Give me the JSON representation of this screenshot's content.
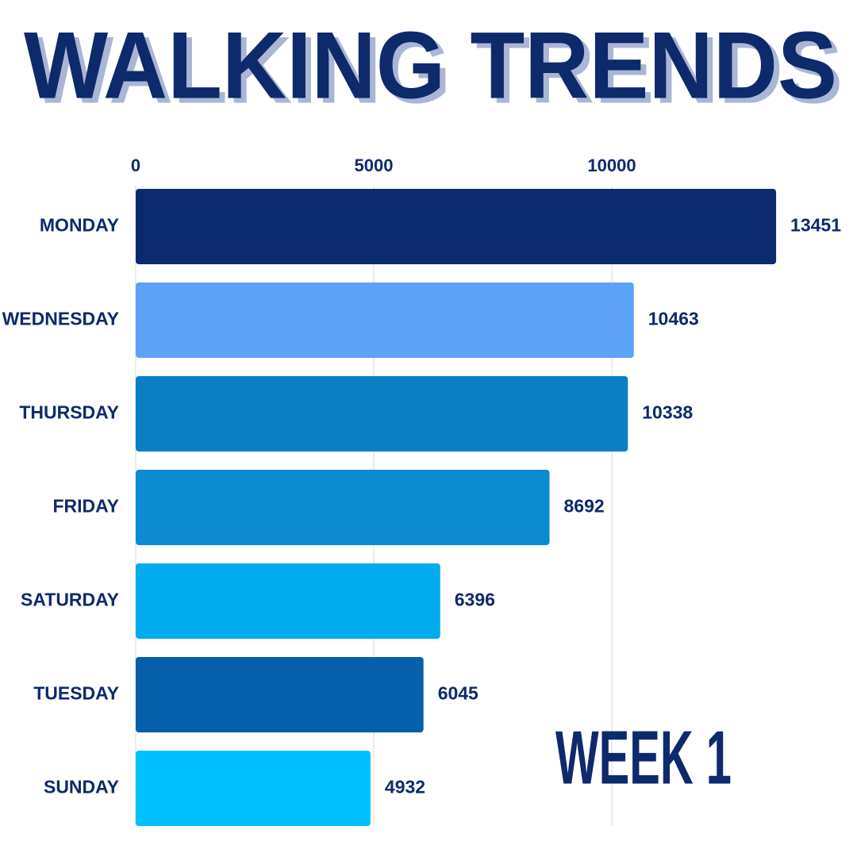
{
  "chart_data": {
    "type": "bar",
    "orientation": "horizontal",
    "title": "WALKING TRENDS",
    "annotation": "WEEK 1",
    "categories": [
      "MONDAY",
      "WEDNESDAY",
      "THURSDAY",
      "FRIDAY",
      "SATURDAY",
      "TUESDAY",
      "SUNDAY"
    ],
    "values": [
      13451,
      10463,
      10338,
      8692,
      6396,
      6045,
      4932
    ],
    "colors": [
      "#0d2a6e",
      "#5ca3f7",
      "#0a7fc6",
      "#0a8bd2",
      "#00acee",
      "#075fa9",
      "#00c0fd"
    ],
    "xlim": [
      0,
      15000
    ],
    "xticks": [
      0,
      5000,
      10000
    ],
    "grid": true
  }
}
